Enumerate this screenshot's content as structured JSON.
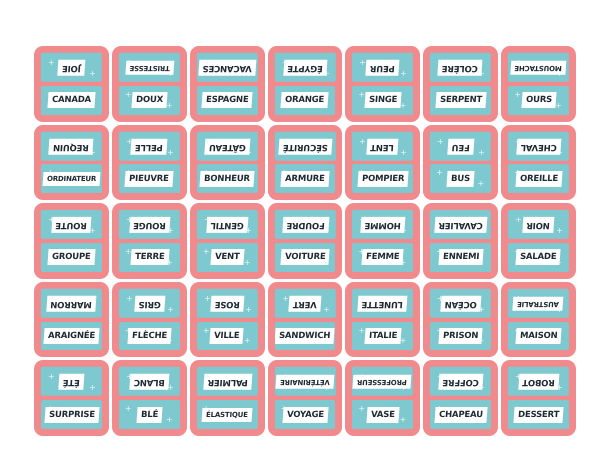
{
  "cards": [
    {
      "top": "JOIE",
      "bottom": "CANADA"
    },
    {
      "top": "TRISTESSE",
      "bottom": "DOUX"
    },
    {
      "top": "VACANCES",
      "bottom": "ESPAGNE"
    },
    {
      "top": "ÉGYPTE",
      "bottom": "ORANGE"
    },
    {
      "top": "PEUR",
      "bottom": "SINGE"
    },
    {
      "top": "COLÈRE",
      "bottom": "SERPENT"
    },
    {
      "top": "MOUSTACHE",
      "bottom": "OURS"
    },
    {
      "top": "REQUIN",
      "bottom": "ORDINATEUR"
    },
    {
      "top": "PELLE",
      "bottom": "PIEUVRE"
    },
    {
      "top": "GÂTEAU",
      "bottom": "BONHEUR"
    },
    {
      "top": "SÉCURITÉ",
      "bottom": "ARMURE"
    },
    {
      "top": "LENT",
      "bottom": "POMPIER"
    },
    {
      "top": "FEU",
      "bottom": "BUS"
    },
    {
      "top": "CHEVAL",
      "bottom": "OREILLE"
    },
    {
      "top": "ROUTE",
      "bottom": "GROUPE"
    },
    {
      "top": "ROUGE",
      "bottom": "TERRE"
    },
    {
      "top": "GENTIL",
      "bottom": "VENT"
    },
    {
      "top": "FOUDRE",
      "bottom": "VOITURE"
    },
    {
      "top": "HOMME",
      "bottom": "FEMME"
    },
    {
      "top": "CAVALIER",
      "bottom": "ENNEMI"
    },
    {
      "top": "NOIR",
      "bottom": "SALADE"
    },
    {
      "top": "MARRON",
      "bottom": "ARAIGNÉE"
    },
    {
      "top": "GRIS",
      "bottom": "FLÈCHE"
    },
    {
      "top": "ROSE",
      "bottom": "VILLE"
    },
    {
      "top": "VERT",
      "bottom": "SANDWICH"
    },
    {
      "top": "LUNETTE",
      "bottom": "ITALIE"
    },
    {
      "top": "OCÉAN",
      "bottom": "PRISON"
    },
    {
      "top": "AUSTRALIE",
      "bottom": "MAISON"
    },
    {
      "top": "ÉTÉ",
      "bottom": "SURPRISE"
    },
    {
      "top": "BLANC",
      "bottom": "BLÉ"
    },
    {
      "top": "PALMIER",
      "bottom": "ÉLASTIQUE"
    },
    {
      "top": "VÉTÉRINAIRE",
      "bottom": "VOYAGE"
    },
    {
      "top": "PROFESSEUR",
      "bottom": "VASE"
    },
    {
      "top": "COFFRE",
      "bottom": "CHAPEAU"
    },
    {
      "top": "ROBOT",
      "bottom": "DESSERT"
    }
  ],
  "colors": {
    "card": "#f08a8c",
    "panel": "#7ec8d0",
    "label": "#ffffff",
    "text": "#1e2a33"
  }
}
